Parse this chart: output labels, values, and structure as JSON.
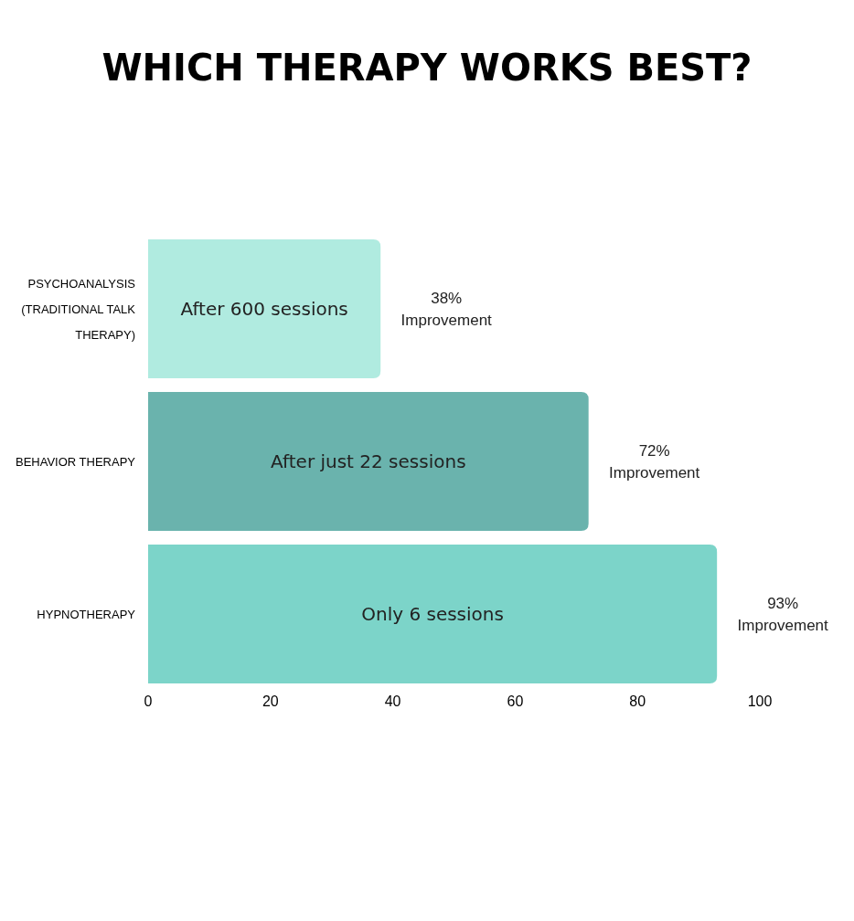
{
  "chart_data": {
    "type": "bar",
    "orientation": "horizontal",
    "title": "WHICH THERAPY WORKS BEST?",
    "categories": [
      "PSYCHOANALYSIS (TRADITIONAL TALK THERAPY)",
      "BEHAVIOR THERAPY",
      "HYPNOTHERAPY"
    ],
    "values": [
      38,
      72,
      93
    ],
    "colors": [
      "#b0ebe0",
      "#6ab3ad",
      "#7cd4c9"
    ],
    "value_labels": [
      "38% Improvement",
      "72% Improvement",
      "93% Improvement"
    ],
    "annotations": [
      "After 600 sessions",
      "After just 22 sessions",
      "Only 6 sessions"
    ],
    "xlim": [
      0,
      100
    ],
    "xticks": [
      0,
      20,
      40,
      60,
      80,
      100
    ],
    "grid": false
  }
}
